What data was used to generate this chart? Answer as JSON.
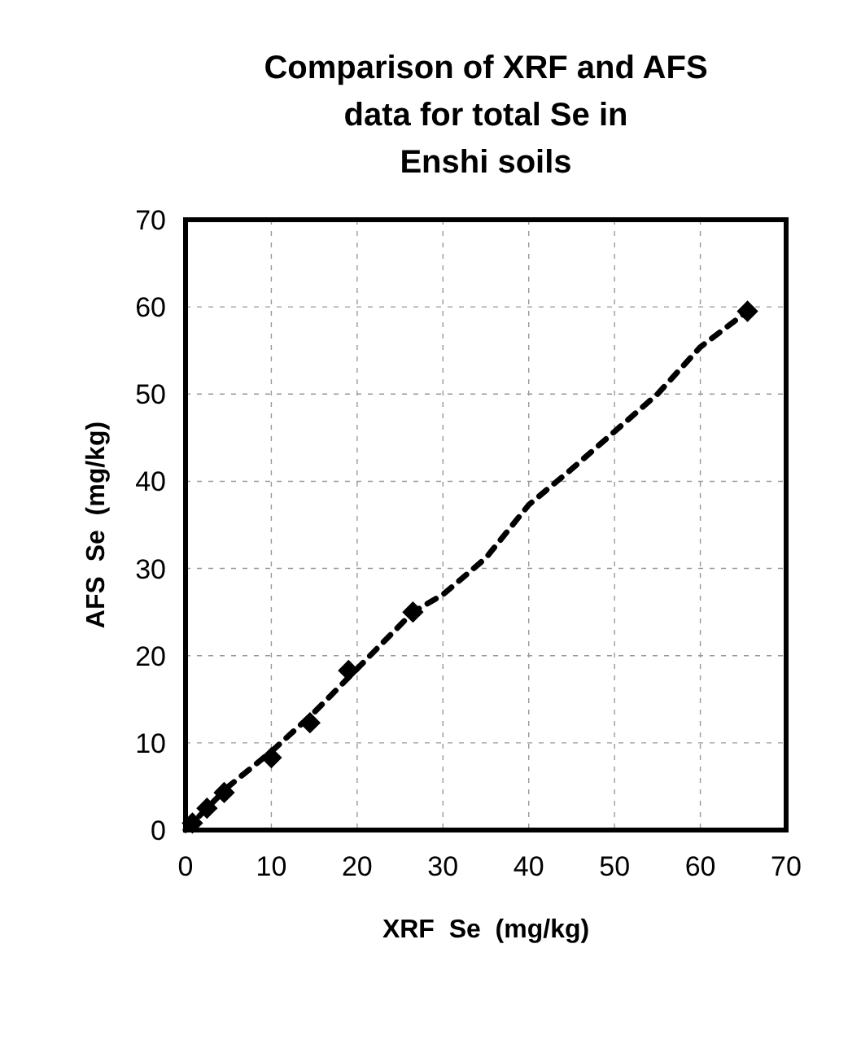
{
  "chart_data": {
    "type": "scatter",
    "title": "Comparison of XRF and AFS data for total Se in Enshi soils",
    "xlabel": "XRF  Se  (mg/kg)",
    "ylabel": "AFS  Se  (mg/kg)",
    "xlim": [
      0,
      70
    ],
    "ylim": [
      0,
      70
    ],
    "xticks": [
      0,
      10,
      20,
      30,
      40,
      50,
      60,
      70
    ],
    "yticks": [
      0,
      10,
      20,
      30,
      40,
      50,
      60,
      70
    ],
    "grid": true,
    "series": [
      {
        "color": "#000000",
        "marker": "diamond",
        "x": [
          0.8,
          2.5,
          4.5,
          10,
          14.5,
          19,
          26.5,
          65.5
        ],
        "values": [
          0.8,
          2.5,
          4.3,
          8.3,
          12.3,
          18.3,
          25,
          59.5
        ]
      },
      {
        "type": "line",
        "color": "#000000",
        "marker": "none",
        "line_style": "dashed",
        "x": [
          0,
          5,
          10,
          15,
          20,
          26.5,
          30,
          35,
          40,
          45,
          50,
          55,
          60,
          65.5
        ],
        "values": [
          0,
          5,
          9,
          13.5,
          18.5,
          25,
          27,
          31.2,
          37.3,
          41.4,
          45.7,
          50,
          55.4,
          59.5
        ]
      }
    ]
  }
}
